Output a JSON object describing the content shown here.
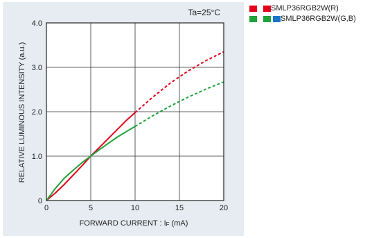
{
  "chart_data": {
    "type": "line",
    "title": "",
    "annotation": "Ta=25°C",
    "xlabel": "FORWARD CURRENT : I",
    "xlabel_sub": "F",
    "xlabel_unit": " (mA)",
    "ylabel": "RELATIVE LUMINOUS INTENSITY (a.u.)",
    "xlim": [
      0,
      20
    ],
    "ylim": [
      0,
      4
    ],
    "x_ticks": [
      0,
      5,
      10,
      15,
      20
    ],
    "x_tick_labels": [
      "0",
      "5",
      "10",
      "15",
      "20"
    ],
    "y_ticks": [
      0,
      1,
      2,
      3,
      4
    ],
    "y_tick_labels": [
      "0",
      "1.0",
      "2.0",
      "3.0",
      "4.0"
    ],
    "grid": true,
    "legend_position": "top-right",
    "legend": [
      {
        "label": "SMLP36RGB2W(R)",
        "colors": [
          "#e3001b",
          "#e3001b"
        ]
      },
      {
        "label": "SMLP36RGB2W(G,B)",
        "colors": [
          "#1fa23a",
          "#1fa23a",
          "#1a75c8"
        ]
      }
    ],
    "series": [
      {
        "name": "SMLP36RGB2W(R)",
        "color": "#e3001b",
        "x": [
          0,
          1,
          2,
          3,
          4,
          5,
          6,
          7,
          8,
          9,
          10,
          12,
          14,
          16,
          18,
          20
        ],
        "y": [
          0,
          0.17,
          0.36,
          0.57,
          0.78,
          1.0,
          1.2,
          1.4,
          1.6,
          1.8,
          1.98,
          2.33,
          2.65,
          2.92,
          3.15,
          3.35
        ],
        "measured_max_x": 10
      },
      {
        "name": "SMLP36RGB2W(G,B)",
        "color": "#1fa23a",
        "x": [
          0,
          1,
          2,
          3,
          4,
          5,
          6,
          7,
          8,
          9,
          10,
          12,
          14,
          16,
          18,
          20
        ],
        "y": [
          0,
          0.27,
          0.5,
          0.68,
          0.85,
          1.0,
          1.15,
          1.29,
          1.43,
          1.55,
          1.67,
          1.91,
          2.13,
          2.33,
          2.51,
          2.67
        ],
        "measured_max_x": 10
      }
    ]
  }
}
